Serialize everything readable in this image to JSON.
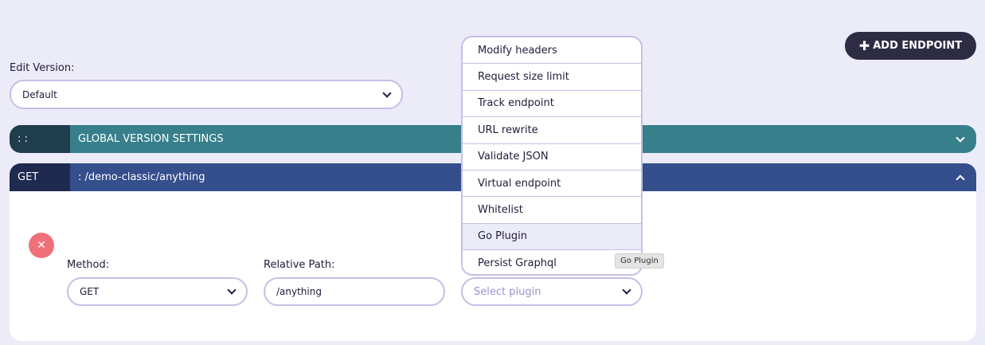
{
  "header": {
    "add_endpoint_label": "ADD ENDPOINT",
    "add_icon": "plus-icon"
  },
  "version": {
    "label": "Edit Version:",
    "value": "Default"
  },
  "global_settings": {
    "handle": ": :",
    "title": "GLOBAL VERSION SETTINGS"
  },
  "endpoint": {
    "method_badge": "GET",
    "path_title": ": /demo-classic/anything",
    "method_label": "Method:",
    "method_value": "GET",
    "path_label": "Relative Path:",
    "path_value": "/anything",
    "plugin_placeholder": "Select plugin"
  },
  "plugin_dropdown": {
    "items": [
      "Modify headers",
      "Request size limit",
      "Track endpoint",
      "URL rewrite",
      "Validate JSON",
      "Virtual endpoint",
      "Whitelist",
      "Go Plugin",
      "Persist Graphql"
    ],
    "highlighted": "Go Plugin"
  },
  "tooltip": "Go Plugin",
  "colors": {
    "background": "#ecebf8",
    "global_bar": "#367f8b",
    "endpoint_bar": "#354e8c",
    "delete": "#f0707a"
  }
}
